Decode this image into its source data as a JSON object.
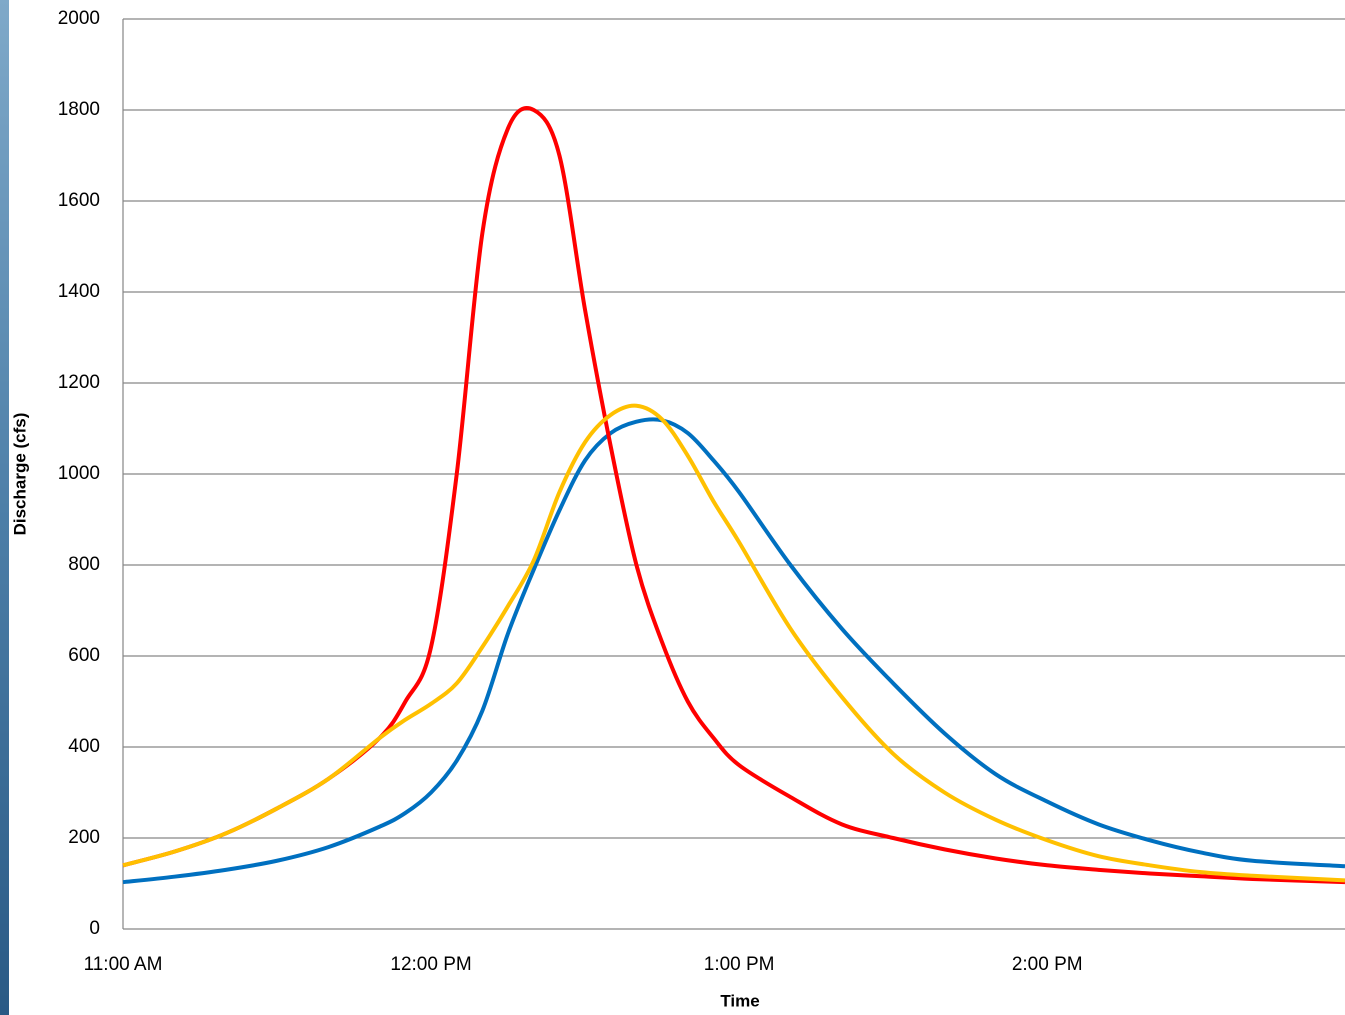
{
  "chart_data": {
    "type": "line",
    "x_label": "Time",
    "y_label": "Discharge (cfs)",
    "x": [
      0,
      10,
      20,
      30,
      40,
      50,
      55,
      60,
      65,
      70,
      75,
      80,
      85,
      90,
      95,
      100,
      105,
      110,
      115,
      120,
      130,
      140,
      150,
      160,
      170,
      180,
      190,
      200,
      210,
      220,
      238
    ],
    "series": [
      {
        "color": "#0070c0",
        "values": [
          103,
          115,
          130,
          150,
          180,
          225,
          255,
          300,
          370,
          480,
          650,
          790,
          920,
          1030,
          1090,
          1115,
          1118,
          1090,
          1030,
          960,
          800,
          660,
          540,
          430,
          340,
          280,
          230,
          195,
          168,
          150,
          138
        ]
      },
      {
        "color": "#ff0000",
        "values": [
          140,
          170,
          210,
          265,
          330,
          420,
          500,
          620,
          1000,
          1530,
          1760,
          1800,
          1700,
          1360,
          1060,
          800,
          630,
          500,
          420,
          360,
          290,
          230,
          200,
          175,
          155,
          140,
          130,
          122,
          116,
          110,
          103
        ]
      },
      {
        "color": "#ffc000",
        "values": [
          140,
          170,
          210,
          265,
          330,
          420,
          460,
          495,
          540,
          620,
          710,
          810,
          960,
          1070,
          1130,
          1150,
          1120,
          1040,
          940,
          850,
          660,
          510,
          385,
          300,
          240,
          195,
          160,
          140,
          125,
          117,
          107
        ]
      }
    ],
    "xlim": [
      0,
      238
    ],
    "xticks": [
      {
        "value": 0,
        "label": "11:00 AM"
      },
      {
        "value": 60,
        "label": "12:00 PM"
      },
      {
        "value": 120,
        "label": "1:00 PM"
      },
      {
        "value": 180,
        "label": "2:00 PM"
      }
    ],
    "ylim": [
      0,
      2000
    ],
    "yticks": [
      0,
      200,
      400,
      600,
      800,
      1000,
      1200,
      1400,
      1600,
      1800,
      2000
    ],
    "grid": true
  }
}
